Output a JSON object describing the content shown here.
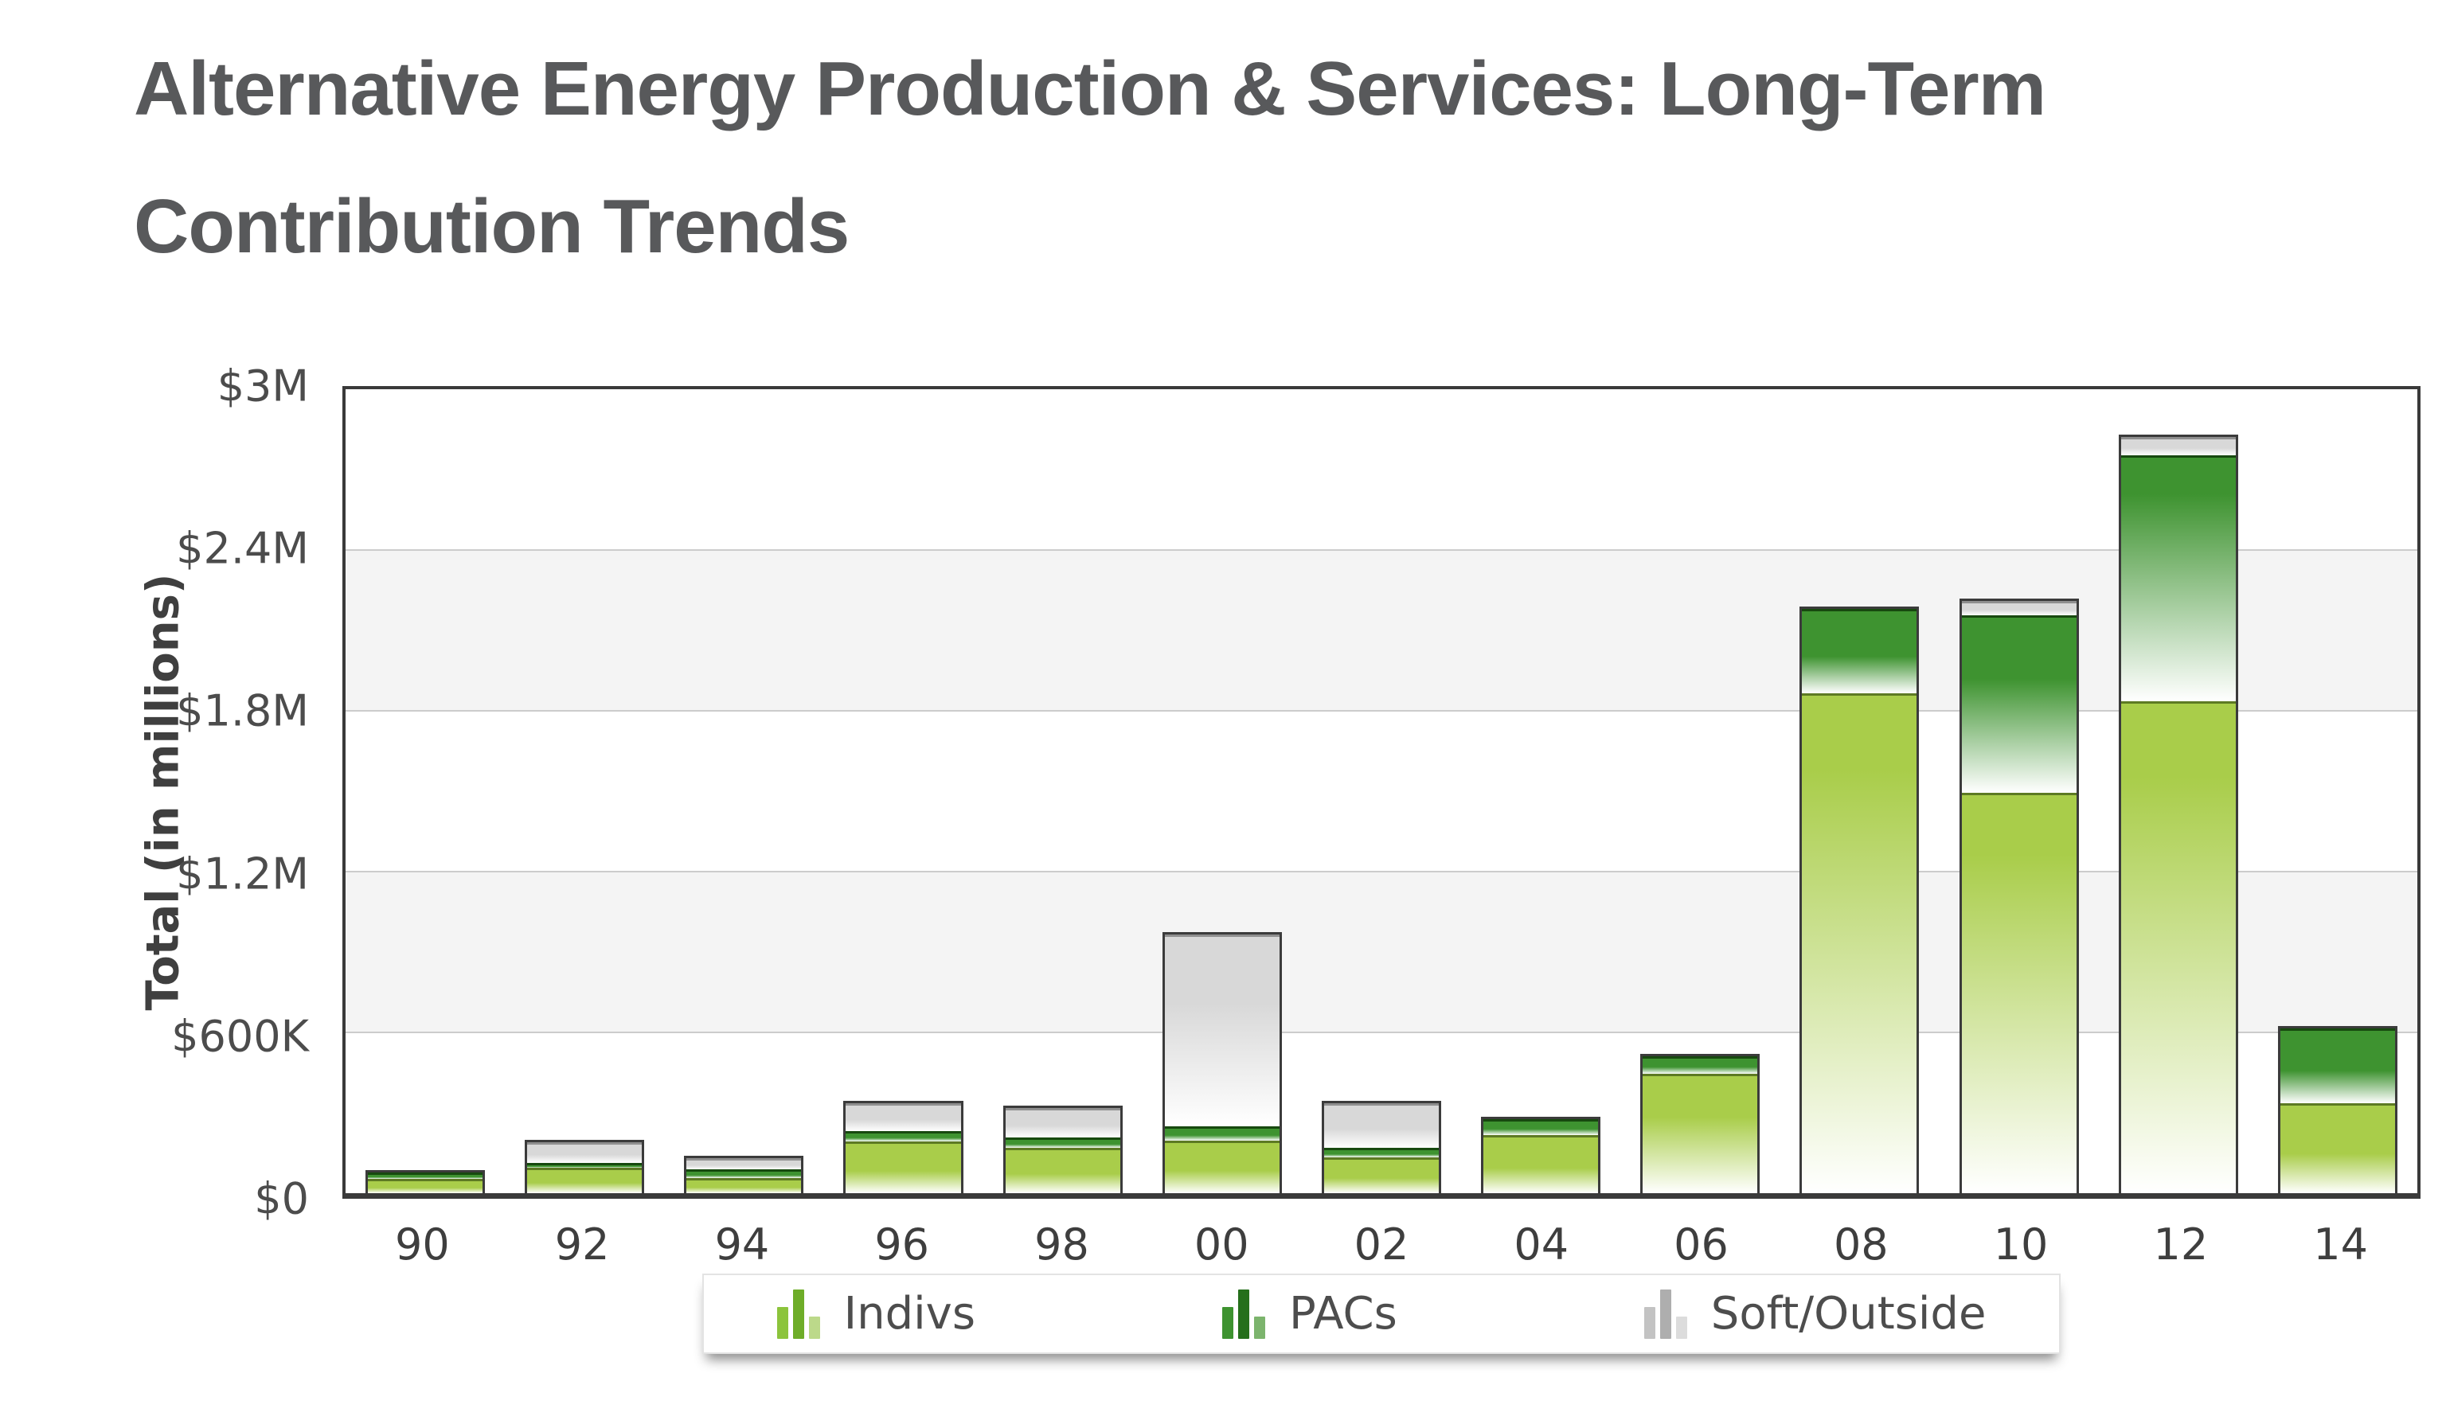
{
  "page": {
    "title": "Alternative Energy Production & Services: Long-Term Contribution Trends"
  },
  "chart": {
    "y_ticks": [
      "$3M",
      "$2.4M",
      "$1.8M",
      "$1.2M",
      "$600K",
      "$0"
    ],
    "colors": {
      "indivs": "#a9cd4a",
      "pacs": "#3e9330",
      "soft_outside": "#d8d8d8",
      "band_gray": "#f4f4f4",
      "gridline": "#cccccc",
      "axis_border": "#3a3a3a",
      "title_text": "#58595b"
    }
  },
  "chart_data": {
    "type": "bar",
    "stacked": true,
    "title": "Alternative Energy Production & Services: Long-Term Contribution Trends",
    "ylabel": "Total (in millions)",
    "xlabel": "",
    "ylim": [
      0,
      3000000
    ],
    "y_tick_interval": 600000,
    "grid": true,
    "legend_position": "bottom",
    "categories": [
      "90",
      "92",
      "94",
      "96",
      "98",
      "00",
      "02",
      "04",
      "06",
      "08",
      "10",
      "12",
      "14"
    ],
    "series": [
      {
        "name": "Indivs",
        "key": "indivs",
        "color": "#a9cd4a",
        "border": "#5d7a23",
        "values": [
          65000,
          105000,
          65000,
          205000,
          180000,
          195000,
          140000,
          230000,
          460000,
          1880000,
          1510000,
          1850000,
          340000
        ]
      },
      {
        "name": "PACs",
        "key": "pacs",
        "color": "#3e9330",
        "border": "#17490f",
        "values": [
          20000,
          12000,
          30000,
          35000,
          33000,
          45000,
          30000,
          55000,
          60000,
          310000,
          665000,
          920000,
          285000
        ]
      },
      {
        "name": "Soft/Outside",
        "key": "soft-outside",
        "color": "#d8d8d8",
        "border": "#8f8f8f",
        "values": [
          0,
          83000,
          45000,
          105000,
          115000,
          735000,
          175000,
          0,
          0,
          0,
          45000,
          60000,
          0
        ]
      }
    ],
    "totals": [
      85000,
      200000,
      140000,
      345000,
      328000,
      975000,
      345000,
      285000,
      520000,
      2190000,
      2220000,
      2830000,
      625000
    ]
  }
}
